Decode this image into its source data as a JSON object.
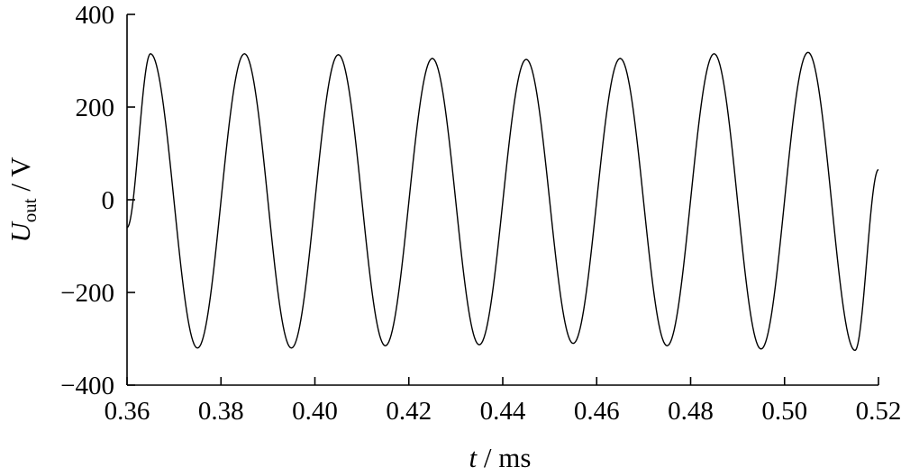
{
  "chart_data": {
    "type": "line",
    "xlabel": "t / ms",
    "xlabel_italic": "t",
    "xlabel_rest": " / ms",
    "ylabel_main": "U",
    "ylabel_sub": "out",
    "ylabel_rest": " / V",
    "xlim": [
      0.36,
      0.52
    ],
    "ylim": [
      -400,
      400
    ],
    "x_ticks": [
      0.36,
      0.38,
      0.4,
      0.42,
      0.44,
      0.46,
      0.48,
      0.5,
      0.52
    ],
    "x_tick_labels": [
      "0.36",
      "0.38",
      "0.40",
      "0.42",
      "0.44",
      "0.46",
      "0.48",
      "0.50",
      "0.52"
    ],
    "y_ticks": [
      400,
      200,
      0,
      -200,
      -400
    ],
    "y_tick_labels": [
      "400",
      "200",
      "0",
      "−200",
      "−400"
    ],
    "grid": false,
    "series": [
      {
        "x": [
          0.36,
          0.365,
          0.375,
          0.385,
          0.395,
          0.405,
          0.415,
          0.425,
          0.435,
          0.445,
          0.455,
          0.465,
          0.475,
          0.485,
          0.495,
          0.505,
          0.515,
          0.52
        ],
        "y": [
          -60,
          315,
          -320,
          315,
          -320,
          313,
          -315,
          305,
          -313,
          303,
          -310,
          305,
          -315,
          315,
          -322,
          318,
          -325,
          65
        ]
      }
    ]
  }
}
